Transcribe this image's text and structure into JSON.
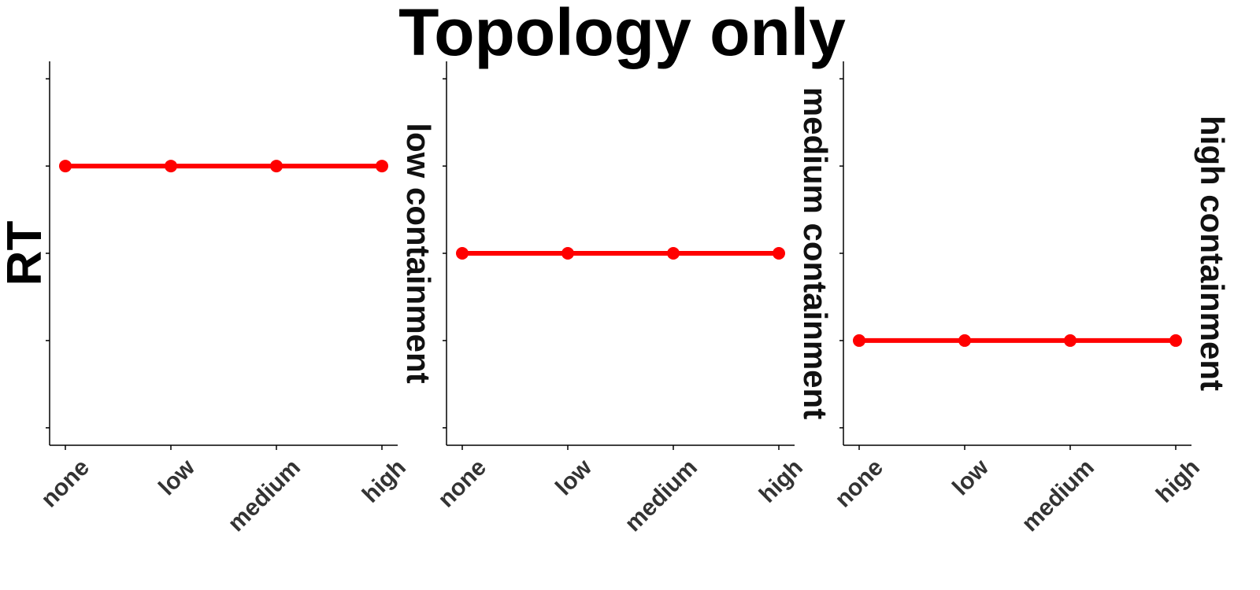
{
  "chart_data": {
    "type": "line",
    "title": "Topology only",
    "ylabel": "RT",
    "xlabel": "",
    "ylim": [
      0,
      4.4
    ],
    "y_ticks": [
      0.2,
      1.2,
      2.2,
      3.2,
      4.2
    ],
    "grid": false,
    "legend": "none",
    "color": "#ff0000",
    "panels": [
      {
        "label": "low containment",
        "categories": [
          "none",
          "low",
          "medium",
          "high"
        ],
        "values": [
          3.2,
          3.2,
          3.2,
          3.2
        ]
      },
      {
        "label": "medium containment",
        "categories": [
          "none",
          "low",
          "medium",
          "high"
        ],
        "values": [
          2.2,
          2.2,
          2.2,
          2.2
        ]
      },
      {
        "label": "high containment",
        "categories": [
          "none",
          "low",
          "medium",
          "high"
        ],
        "values": [
          1.2,
          1.2,
          1.2,
          1.2
        ]
      }
    ]
  }
}
